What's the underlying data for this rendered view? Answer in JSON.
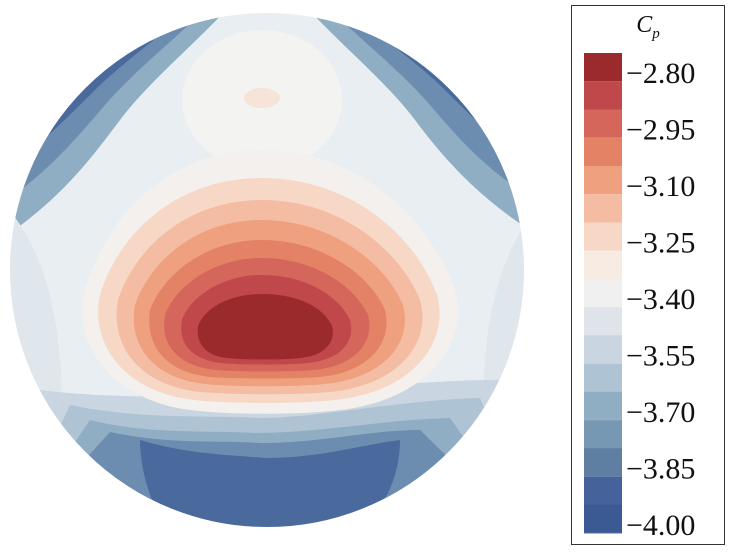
{
  "chart_data": {
    "type": "heatmap",
    "title": "",
    "xlabel": "",
    "ylabel": "",
    "colorbar": {
      "label_main": "C",
      "label_sub": "p",
      "levels": [
        -2.8,
        -2.95,
        -3.1,
        -3.25,
        -3.4,
        -3.55,
        -3.7,
        -3.85,
        -4.0
      ],
      "tick_labels": [
        "−2.80",
        "−2.95",
        "−3.10",
        "−3.25",
        "−3.40",
        "−3.55",
        "−3.70",
        "−3.85",
        "−4.00"
      ],
      "colors": [
        "#9b2a2c",
        "#c0474a",
        "#d4665b",
        "#e38265",
        "#eea07f",
        "#f4bda3",
        "#f7d8c6",
        "#f8ebe2",
        "#eff0ef",
        "#dee4ea",
        "#c9d5e0",
        "#aec3d3",
        "#8faec3",
        "#7798b3",
        "#5e7ea2",
        "#45639a",
        "#3b5a94"
      ],
      "range": [
        -4.05,
        -2.75
      ]
    },
    "field": {
      "description_shape": "circular domain",
      "regions": [
        {
          "label": "core_max",
          "value": -2.75
        },
        {
          "label": "outer_top_left",
          "value": -4.0
        },
        {
          "label": "outer_top_right",
          "value": -4.0
        },
        {
          "label": "bottom_band",
          "value": -4.0
        }
      ]
    }
  }
}
